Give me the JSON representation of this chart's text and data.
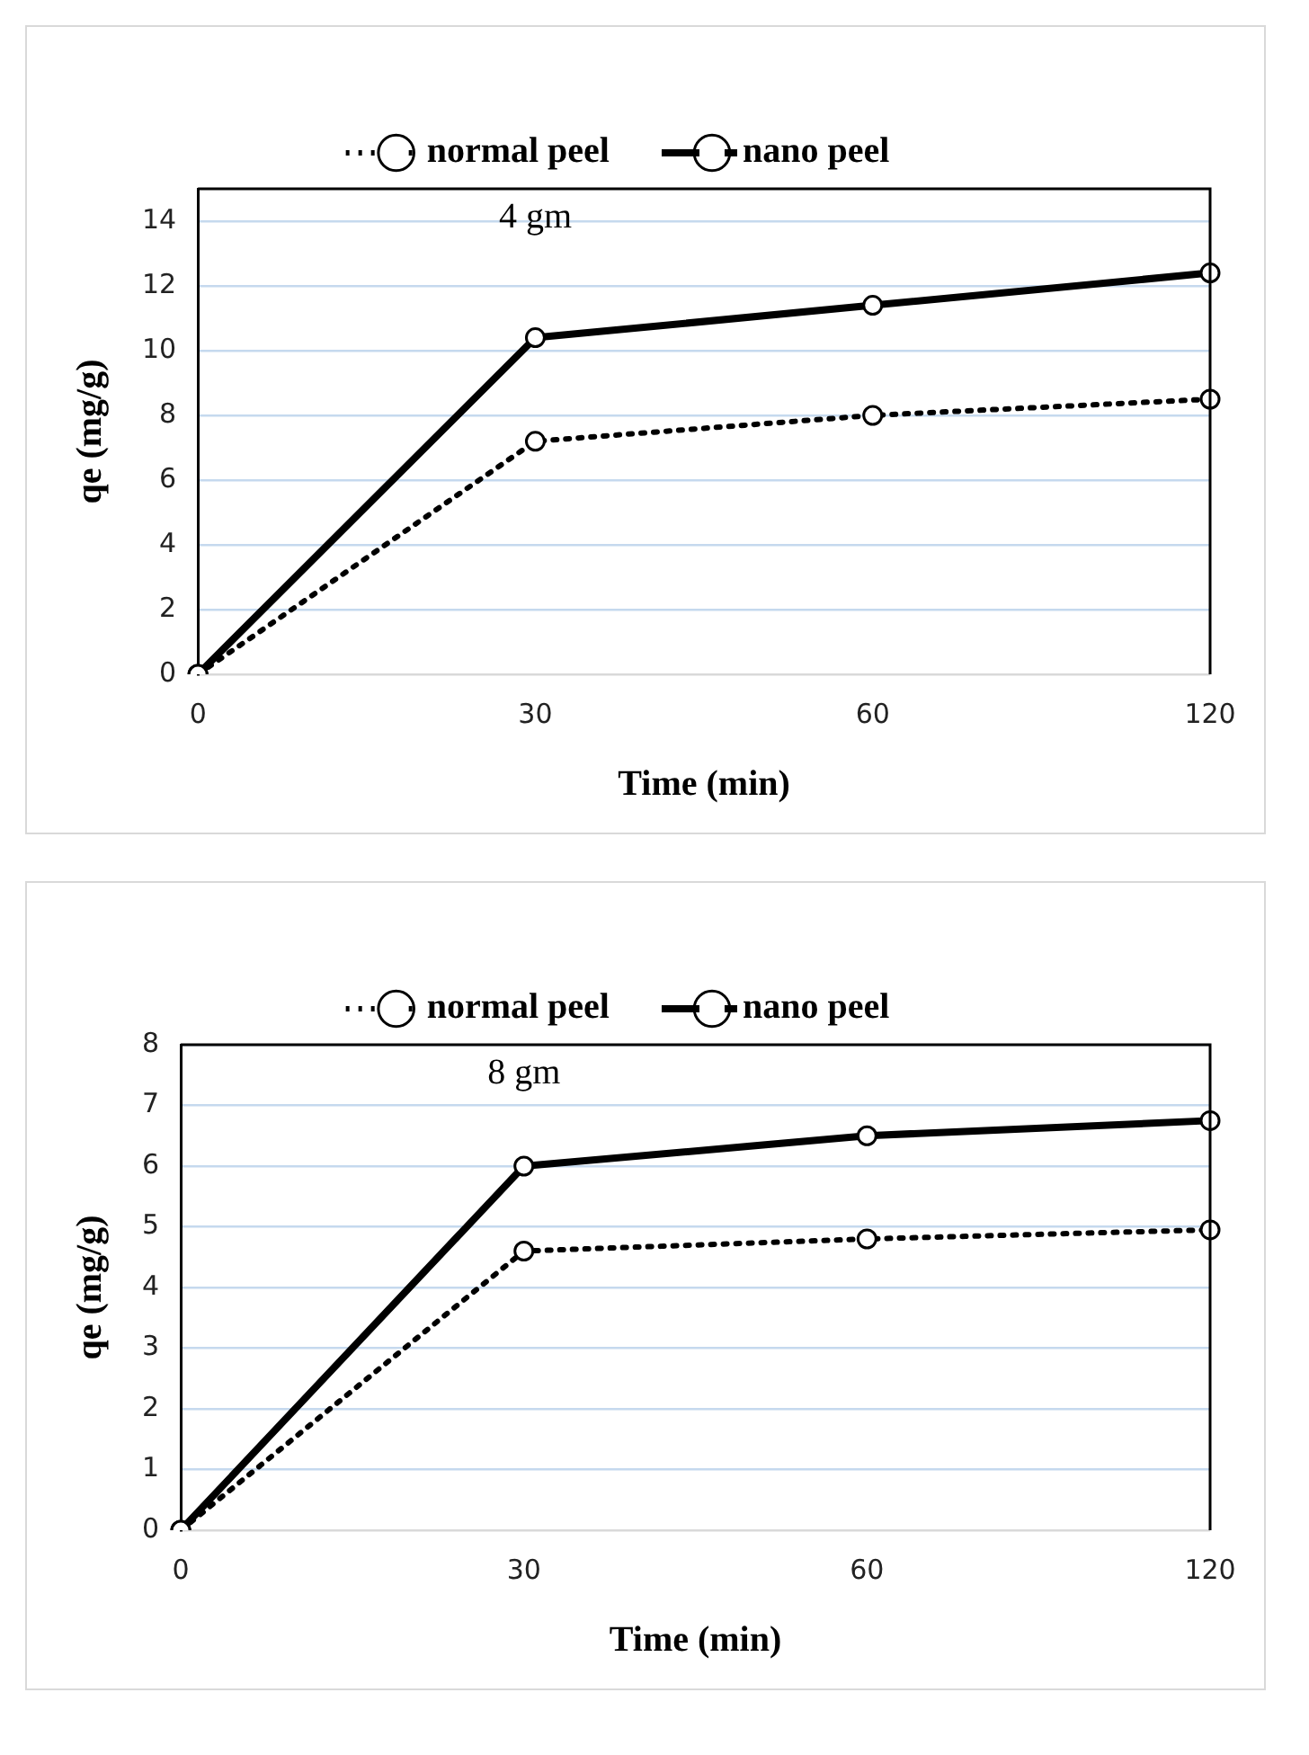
{
  "chart_data": [
    {
      "type": "line",
      "categories": [
        "0",
        "30",
        "60",
        "120"
      ],
      "xlabel": "Time (min)",
      "ylabel": "qe (mg/g)",
      "annotations": [
        "4 gm"
      ],
      "ylim": [
        0,
        15
      ],
      "yticks": [
        0,
        2,
        4,
        6,
        8,
        10,
        12,
        14
      ],
      "grid": "y",
      "legend": "top",
      "marker": "circle",
      "series": [
        {
          "name": "normal peel",
          "color": "#000000",
          "line_style": "dotted",
          "values": [
            0,
            7.2,
            8.0,
            8.5
          ]
        },
        {
          "name": "nano peel",
          "color": "#000000",
          "line_style": "solid",
          "values": [
            0,
            10.4,
            11.4,
            12.4
          ]
        }
      ]
    },
    {
      "type": "line",
      "categories": [
        "0",
        "30",
        "60",
        "120"
      ],
      "xlabel": "Time (min)",
      "ylabel": "qe (mg/g)",
      "annotations": [
        "8 gm"
      ],
      "ylim": [
        0,
        8
      ],
      "yticks": [
        0,
        1,
        2,
        3,
        4,
        5,
        6,
        7,
        8
      ],
      "grid": "y",
      "legend": "top",
      "marker": "circle",
      "series": [
        {
          "name": "normal peel",
          "color": "#000000",
          "line_style": "dotted",
          "values": [
            0,
            4.6,
            4.8,
            4.95
          ]
        },
        {
          "name": "nano peel",
          "color": "#000000",
          "line_style": "solid",
          "values": [
            0,
            6.0,
            6.5,
            6.75
          ]
        }
      ]
    }
  ]
}
